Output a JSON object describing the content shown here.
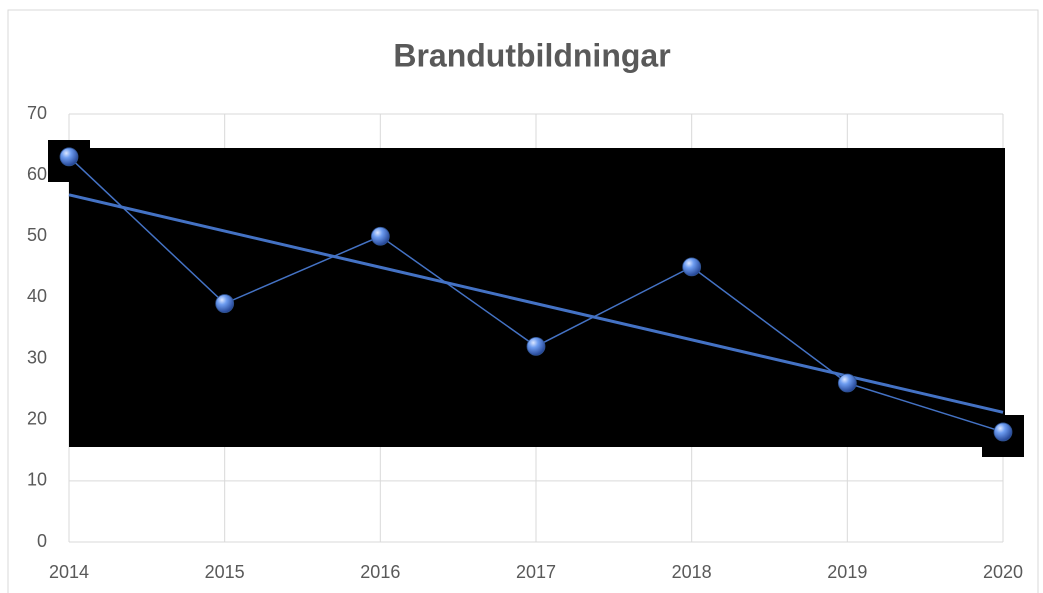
{
  "chart_data": {
    "type": "line",
    "title": "Brandutbildningar",
    "x": [
      2014,
      2015,
      2016,
      2017,
      2018,
      2019,
      2020
    ],
    "values": [
      63,
      39,
      50,
      32,
      45,
      26,
      18
    ],
    "color": "#4472c4",
    "trendline": "linear",
    "xlim": [
      2014,
      2020
    ],
    "xticks": [
      2014,
      2015,
      2016,
      2017,
      2018,
      2019,
      2020
    ],
    "ylim": [
      0,
      70
    ],
    "yticks": [
      0,
      10,
      20,
      30,
      40,
      50,
      60,
      70
    ],
    "grid": true
  }
}
